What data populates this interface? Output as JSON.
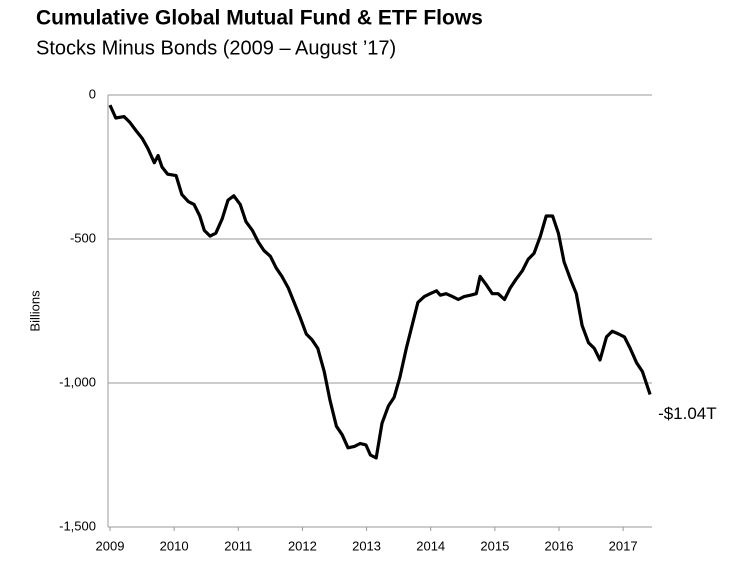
{
  "chart_data": {
    "type": "line",
    "title": "Cumulative Global Mutual Fund & ETF Flows",
    "subtitle": "Stocks Minus Bonds (2009 – August ’17)",
    "y_label": "Billions",
    "annotation": "-$1.04T",
    "x": [
      2009.0,
      2009.09,
      2009.22,
      2009.31,
      2009.41,
      2009.5,
      2009.59,
      2009.69,
      2009.75,
      2009.81,
      2009.9,
      2010.03,
      2010.12,
      2010.22,
      2010.31,
      2010.4,
      2010.47,
      2010.56,
      2010.65,
      2010.75,
      2010.84,
      2010.93,
      2011.03,
      2011.12,
      2011.22,
      2011.31,
      2011.4,
      2011.5,
      2011.59,
      2011.68,
      2011.78,
      2011.87,
      2011.96,
      2012.06,
      2012.15,
      2012.24,
      2012.34,
      2012.43,
      2012.53,
      2012.62,
      2012.71,
      2012.81,
      2012.9,
      2012.99,
      2013.06,
      2013.15,
      2013.24,
      2013.34,
      2013.43,
      2013.52,
      2013.62,
      2013.71,
      2013.8,
      2013.9,
      2013.99,
      2014.09,
      2014.15,
      2014.24,
      2014.34,
      2014.43,
      2014.52,
      2014.62,
      2014.71,
      2014.77,
      2014.87,
      2014.96,
      2015.05,
      2015.15,
      2015.24,
      2015.33,
      2015.43,
      2015.52,
      2015.61,
      2015.71,
      2015.8,
      2015.9,
      2015.99,
      2016.08,
      2016.18,
      2016.27,
      2016.36,
      2016.46,
      2016.55,
      2016.64,
      2016.74,
      2016.83,
      2016.93,
      2017.02,
      2017.11,
      2017.21,
      2017.3,
      2017.42
    ],
    "series": [
      {
        "name": "Stocks minus bonds",
        "color": "#000000",
        "values": [
          -35,
          -80,
          -75,
          -95,
          -125,
          -150,
          -185,
          -235,
          -210,
          -250,
          -275,
          -280,
          -345,
          -370,
          -380,
          -420,
          -470,
          -490,
          -480,
          -430,
          -365,
          -350,
          -380,
          -440,
          -470,
          -510,
          -540,
          -560,
          -600,
          -630,
          -670,
          -720,
          -770,
          -830,
          -850,
          -880,
          -960,
          -1060,
          -1150,
          -1180,
          -1225,
          -1220,
          -1210,
          -1215,
          -1250,
          -1260,
          -1140,
          -1080,
          -1050,
          -980,
          -880,
          -800,
          -720,
          -700,
          -690,
          -680,
          -695,
          -690,
          -700,
          -710,
          -700,
          -695,
          -690,
          -630,
          -660,
          -690,
          -690,
          -710,
          -670,
          -640,
          -610,
          -570,
          -550,
          -490,
          -420,
          -420,
          -480,
          -580,
          -640,
          -690,
          -800,
          -860,
          -880,
          -920,
          -840,
          -820,
          -830,
          -840,
          -880,
          -930,
          -960,
          -1040
        ]
      }
    ],
    "xlim": [
      2009,
      2017.45
    ],
    "xticks": [
      2009,
      2010,
      2011,
      2012,
      2013,
      2014,
      2015,
      2016,
      2017
    ],
    "ylim": [
      -1500,
      0
    ],
    "yticks": [
      0,
      -500,
      {
        "value": -1000,
        "label": "-1,000"
      },
      {
        "value": -1500,
        "label": "-1,500"
      }
    ],
    "grid": true
  }
}
